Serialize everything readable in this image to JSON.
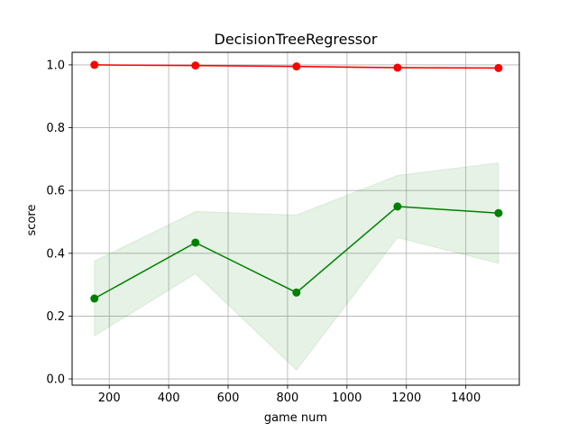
{
  "chart_data": {
    "type": "line",
    "title": "DecisionTreeRegressor",
    "xlabel": "game num",
    "ylabel": "score",
    "xlim": [
      75,
      1580
    ],
    "ylim": [
      -0.02,
      1.04
    ],
    "xticks": [
      200,
      400,
      600,
      800,
      1000,
      1200,
      1400
    ],
    "yticks": [
      0.0,
      0.2,
      0.4,
      0.6,
      0.8,
      1.0
    ],
    "xtick_labels": [
      "200",
      "400",
      "600",
      "800",
      "1000",
      "1200",
      "1400"
    ],
    "ytick_labels": [
      "0.0",
      "0.2",
      "0.4",
      "0.6",
      "0.8",
      "1.0"
    ],
    "grid": true,
    "x": [
      150,
      490,
      830,
      1170,
      1510
    ],
    "series": [
      {
        "color": "#ff0000",
        "marker_color": "#ff0000",
        "values": [
          1.0,
          0.998,
          0.995,
          0.991,
          0.99
        ],
        "band_lower": [
          0.999,
          0.996,
          0.993,
          0.989,
          0.988
        ],
        "band_upper": [
          1.0,
          1.0,
          0.997,
          0.993,
          0.992
        ],
        "band_color": "#ff0000"
      },
      {
        "color": "#008000",
        "marker_color": "#008000",
        "values": [
          0.256,
          0.434,
          0.275,
          0.549,
          0.528
        ],
        "band_lower": [
          0.137,
          0.335,
          0.028,
          0.45,
          0.368
        ],
        "band_upper": [
          0.375,
          0.533,
          0.522,
          0.648,
          0.688
        ],
        "band_color": "#008000"
      }
    ]
  }
}
